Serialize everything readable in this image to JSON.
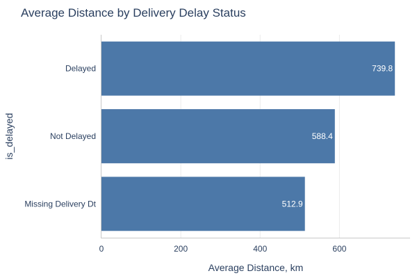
{
  "chart_data": {
    "type": "bar",
    "orientation": "horizontal",
    "title": "Average Distance by Delivery Delay Status",
    "xlabel": "Average Distance, km",
    "ylabel": "is_delayed",
    "categories": [
      "Delayed",
      "Not Delayed",
      "Missing Delivery Dt"
    ],
    "values": [
      739.8,
      588.4,
      512.9
    ],
    "value_labels": [
      "739.8",
      "588.4",
      "512.9"
    ],
    "xlim": [
      0,
      778
    ],
    "xticks": [
      0,
      200,
      400,
      600
    ],
    "grid": true,
    "bar_color": "#4c78a8"
  }
}
